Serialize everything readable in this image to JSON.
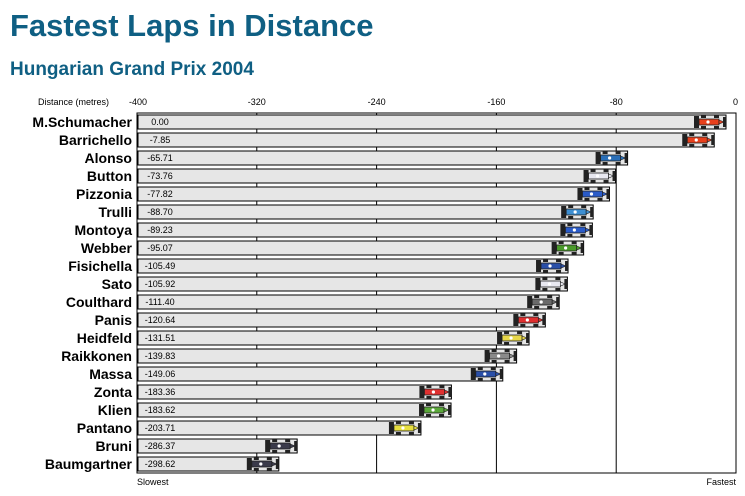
{
  "title": "Fastest Laps in Distance",
  "subtitle": "Hungarian Grand Prix 2004",
  "chart_data": {
    "type": "bar",
    "orientation": "horizontal",
    "title": "Fastest Laps in Distance",
    "subtitle": "Hungarian Grand Prix 2004",
    "xlabel": "Distance (metres)",
    "xlim": [
      -400,
      0
    ],
    "xticks": [
      "-400",
      "-320",
      "-240",
      "-160",
      "-80",
      "0"
    ],
    "left_end_label": "Slowest",
    "right_end_label": "Fastest",
    "grid": "vertical",
    "categories": [
      "M.Schumacher",
      "Barrichello",
      "Alonso",
      "Button",
      "Pizzonia",
      "Trulli",
      "Montoya",
      "Webber",
      "Fisichella",
      "Sato",
      "Coulthard",
      "Panis",
      "Heidfeld",
      "Raikkonen",
      "Massa",
      "Zonta",
      "Klien",
      "Pantano",
      "Bruni",
      "Baumgartner"
    ],
    "values": [
      0.0,
      -7.85,
      -65.71,
      -73.76,
      -77.82,
      -88.7,
      -89.23,
      -95.07,
      -105.49,
      -105.92,
      -111.4,
      -120.64,
      -131.51,
      -139.83,
      -149.06,
      -183.36,
      -183.62,
      -203.71,
      -286.37,
      -298.62
    ],
    "value_labels": [
      "0.00",
      "-7.85",
      "-65.71",
      "-73.76",
      "-77.82",
      "-88.70",
      "-89.23",
      "-95.07",
      "-105.49",
      "-105.92",
      "-111.40",
      "-120.64",
      "-131.51",
      "-139.83",
      "-149.06",
      "-183.36",
      "-183.62",
      "-203.71",
      "-286.37",
      "-298.62"
    ],
    "car_colors": [
      "#e8401c",
      "#e8401c",
      "#2a6fb8",
      "#e8e8f0",
      "#2a5bc8",
      "#3e8fd2",
      "#2a5bc8",
      "#4a9a2a",
      "#2a4fa8",
      "#e8e8f0",
      "#6a6a6a",
      "#e03030",
      "#e8d84a",
      "#8a8a8a",
      "#2a4fa8",
      "#e03030",
      "#5aa83a",
      "#e8e040",
      "#3a3a4a",
      "#3a3a4a"
    ]
  }
}
